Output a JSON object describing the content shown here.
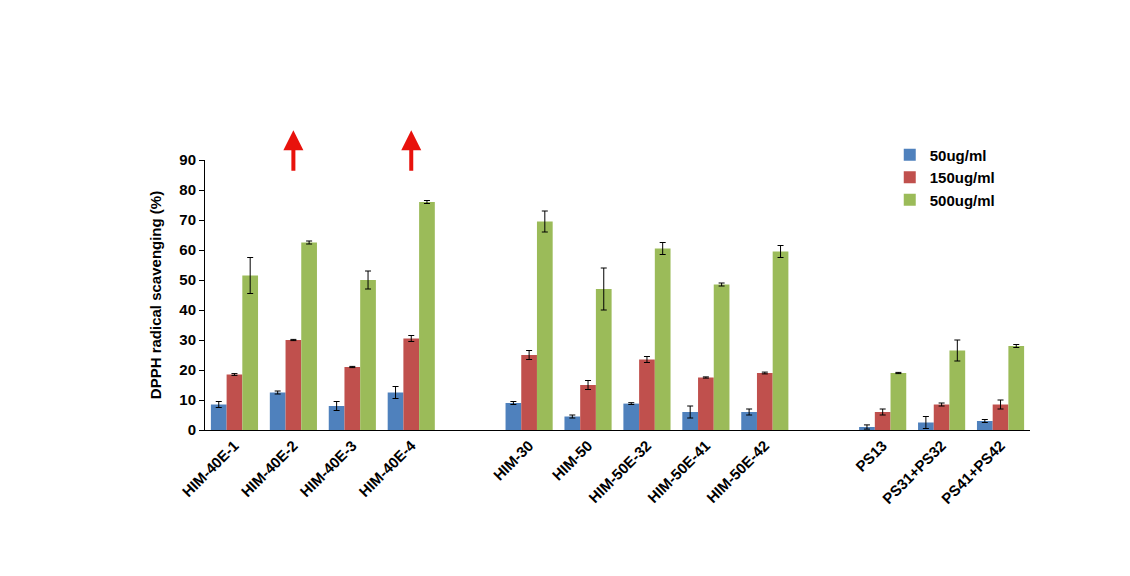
{
  "chart_data": {
    "type": "bar",
    "y_label": "DPPH radical scavenging (%)",
    "categories": [
      "HIM-40E-1",
      "HIM-40E-2",
      "HIM-40E-3",
      "HIM-40E-4",
      null,
      "HIM-30",
      "HIM-50",
      "HIM-50E-32",
      "HIM-50E-41",
      "HIM-50E-42",
      null,
      "PS13",
      "PS31+PS32",
      "PS41+PS42"
    ],
    "series": [
      {
        "name": "50ug/ml",
        "color": "#4f81bd",
        "values": [
          8.5,
          12.5,
          8,
          12.5,
          null,
          9,
          4.5,
          8.8,
          6,
          6,
          null,
          1,
          2.5,
          3
        ],
        "errors": [
          1,
          0.5,
          1.5,
          2,
          null,
          0.5,
          0.5,
          0.3,
          2,
          1,
          null,
          0.7,
          2,
          0.5
        ]
      },
      {
        "name": "150ug/ml",
        "color": "#c0504d",
        "values": [
          18.5,
          30,
          21,
          30.5,
          null,
          25,
          15,
          23.5,
          17.5,
          19,
          null,
          6,
          8.5,
          8.5
        ],
        "errors": [
          0.3,
          0.2,
          0.2,
          1,
          null,
          1.5,
          1.5,
          1,
          0.2,
          0.3,
          null,
          1,
          0.5,
          1.5
        ]
      },
      {
        "name": "500ug/ml",
        "color": "#9bbb59",
        "values": [
          51.5,
          62.5,
          50,
          76,
          null,
          69.5,
          47,
          60.5,
          48.5,
          59.5,
          null,
          19,
          26.5,
          28
        ],
        "errors": [
          6,
          0.5,
          3,
          0.5,
          null,
          3.5,
          7,
          2,
          0.5,
          2,
          null,
          0.2,
          3.5,
          0.5
        ]
      }
    ],
    "ylim": [
      0,
      90
    ],
    "yticks": [
      0,
      10,
      20,
      30,
      40,
      50,
      60,
      70,
      80,
      90
    ],
    "grid": false,
    "legend": "top-right",
    "annotations": [
      {
        "category": "HIM-40E-2",
        "arrow": "up",
        "color": "#e8120c"
      },
      {
        "category": "HIM-40E-4",
        "arrow": "up",
        "color": "#e8120c"
      }
    ]
  }
}
